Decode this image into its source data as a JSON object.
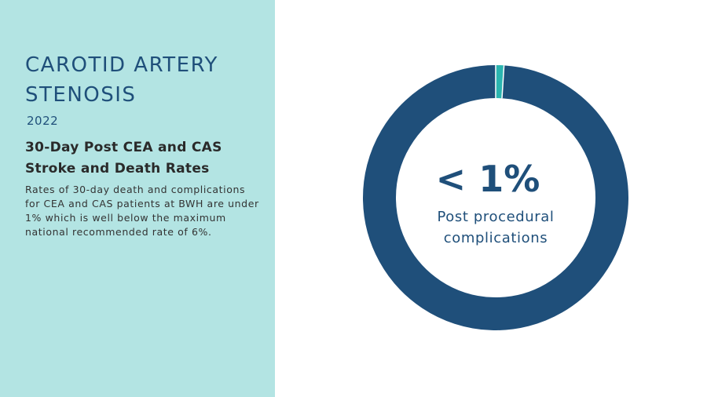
{
  "left_panel": {
    "title": "CAROTID ARTERY STENOSIS",
    "year": "2022",
    "subtitle": "30-Day Post CEA and CAS Stroke and Death Rates",
    "body": "Rates of 30-day death and complications for CEA and CAS patients at BWH are under 1% which is well below the maximum national recommended rate of 6%."
  },
  "colors": {
    "panel_background": "#b3e4e3",
    "primary": "#1f4f7a",
    "accent": "#2bb5b0"
  },
  "chart_data": {
    "type": "pie",
    "donut": true,
    "center_value": "< 1%",
    "center_label": "Post procedural complications",
    "slices": [
      {
        "value": 1,
        "color": "#2bb5b0"
      },
      {
        "value": 99,
        "color": "#1f4f7a"
      }
    ]
  }
}
